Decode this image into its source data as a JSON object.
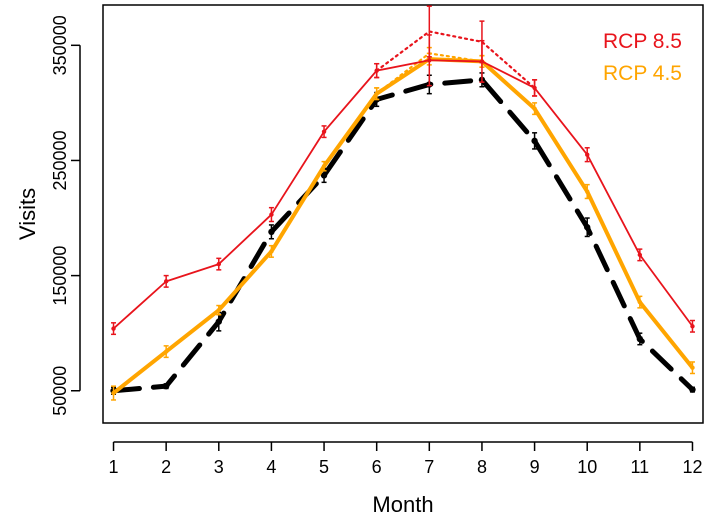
{
  "chart_data": {
    "type": "line",
    "xlabel": "Month",
    "ylabel": "Visits",
    "xlim": [
      0.8,
      12.2
    ],
    "ylim": [
      22000,
      385000
    ],
    "x_ticks": [
      1,
      2,
      3,
      4,
      5,
      6,
      7,
      8,
      9,
      10,
      11,
      12
    ],
    "x_tick_labels": [
      "1",
      "2",
      "3",
      "4",
      "5",
      "6",
      "7",
      "8",
      "9",
      "10",
      "11",
      "12"
    ],
    "y_ticks": [
      50000,
      150000,
      250000,
      350000
    ],
    "y_tick_labels": [
      "50000",
      "150000",
      "250000",
      "350000"
    ],
    "legend": {
      "position": "top-right",
      "entries": [
        {
          "label": "RCP 8.5",
          "color": "#e8141c"
        },
        {
          "label": "RCP 4.5",
          "color": "#ffa500"
        }
      ]
    },
    "series": [
      {
        "color": "#000000",
        "style": "dashed",
        "x": [
          1,
          2,
          3,
          4,
          5,
          6,
          7,
          8,
          9,
          10,
          11,
          12
        ],
        "y": [
          50000,
          54000,
          110000,
          188000,
          237000,
          303000,
          316000,
          320000,
          267000,
          192000,
          95000,
          51000
        ],
        "err": [
          3000,
          2000,
          8000,
          6000,
          6000,
          6000,
          8000,
          6000,
          7000,
          8000,
          5000,
          2000
        ]
      },
      {
        "color": "#ffa500",
        "style": "solid",
        "x": [
          1,
          2,
          3,
          4,
          5,
          6,
          7,
          8,
          9,
          10,
          11,
          12
        ],
        "y": [
          48000,
          84000,
          120000,
          171000,
          245000,
          308000,
          338000,
          336000,
          295000,
          223000,
          127000,
          70000
        ],
        "err": [
          6000,
          5000,
          4000,
          5000,
          4000,
          5000,
          5000,
          5000,
          5000,
          6000,
          5000,
          5000
        ]
      },
      {
        "color": "#ffa500",
        "style": "dotted",
        "x": [
          6,
          7,
          8
        ],
        "y": [
          308000,
          343000,
          336000
        ],
        "err": [
          5000,
          5000,
          5000
        ]
      },
      {
        "color": "#e8141c",
        "style": "solid",
        "x": [
          1,
          2,
          3,
          4,
          5,
          6,
          7,
          8,
          9,
          10,
          11,
          12
        ],
        "y": [
          104000,
          145000,
          160000,
          203000,
          275000,
          328000,
          337000,
          336000,
          313000,
          255000,
          168000,
          106000
        ],
        "err": [
          5000,
          5000,
          5000,
          6000,
          5000,
          6000,
          22000,
          18000,
          7000,
          6000,
          5000,
          5000
        ]
      },
      {
        "color": "#e8141c",
        "style": "dotted",
        "x": [
          6,
          7,
          8,
          9
        ],
        "y": [
          328000,
          362000,
          353000,
          313000
        ],
        "err": [
          6000,
          22000,
          18000,
          7000
        ]
      }
    ]
  }
}
